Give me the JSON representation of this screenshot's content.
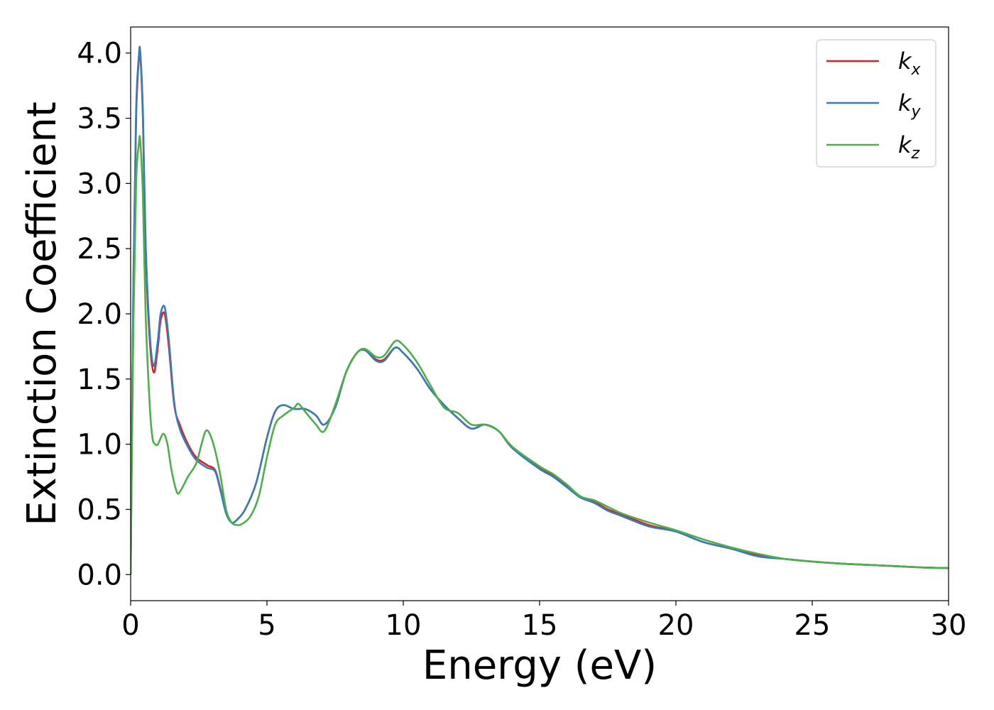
{
  "chart_data": {
    "type": "line",
    "xlabel": "Energy (eV)",
    "ylabel": "Extinction Coefficient",
    "xlim": [
      0,
      30
    ],
    "ylim": [
      -0.2,
      4.2
    ],
    "xticks": [
      0,
      5,
      10,
      15,
      20,
      25,
      30
    ],
    "xtick_labels": [
      "0",
      "5",
      "10",
      "15",
      "20",
      "25",
      "30"
    ],
    "yticks": [
      0.0,
      0.5,
      1.0,
      1.5,
      2.0,
      2.5,
      3.0,
      3.5,
      4.0
    ],
    "ytick_labels": [
      "0.0",
      "0.5",
      "1.0",
      "1.5",
      "2.0",
      "2.5",
      "3.0",
      "3.5",
      "4.0"
    ],
    "grid": false,
    "legend_position": "top-right",
    "series": [
      {
        "name": "k_x",
        "legend_base": "k",
        "legend_sub": "x",
        "color": "#e41a1c",
        "x": [
          0,
          0.1,
          0.2,
          0.3,
          0.35,
          0.45,
          0.55,
          0.7,
          0.85,
          1.0,
          1.1,
          1.25,
          1.4,
          1.6,
          1.8,
          2.1,
          2.4,
          2.8,
          3.1,
          3.3,
          3.5,
          3.7,
          3.9,
          4.2,
          4.6,
          5.0,
          5.3,
          5.6,
          6.0,
          6.4,
          6.8,
          7.1,
          7.5,
          7.9,
          8.3,
          8.6,
          9.0,
          9.3,
          9.7,
          10.0,
          10.5,
          11.0,
          11.5,
          12.0,
          12.5,
          13.0,
          13.5,
          14.0,
          15.0,
          15.5,
          16.0,
          16.5,
          17.0,
          17.5,
          18.0,
          19.0,
          20.0,
          21.0,
          22.0,
          23.0,
          24.0,
          25.0,
          26.0,
          27.0,
          28.0,
          29.0,
          30.0
        ],
        "y": [
          0.0,
          2.2,
          3.5,
          3.95,
          4.0,
          3.5,
          2.5,
          1.8,
          1.55,
          1.75,
          1.95,
          2.0,
          1.75,
          1.3,
          1.15,
          1.0,
          0.9,
          0.84,
          0.8,
          0.65,
          0.48,
          0.4,
          0.42,
          0.5,
          0.7,
          1.05,
          1.25,
          1.3,
          1.27,
          1.27,
          1.22,
          1.15,
          1.28,
          1.55,
          1.7,
          1.72,
          1.65,
          1.65,
          1.74,
          1.7,
          1.58,
          1.42,
          1.3,
          1.2,
          1.12,
          1.15,
          1.1,
          0.98,
          0.82,
          0.76,
          0.68,
          0.6,
          0.56,
          0.5,
          0.46,
          0.38,
          0.33,
          0.25,
          0.2,
          0.15,
          0.12,
          0.1,
          0.085,
          0.075,
          0.065,
          0.055,
          0.05
        ]
      },
      {
        "name": "k_y",
        "legend_base": "k",
        "legend_sub": "y",
        "color": "#377eb8",
        "x": [
          0,
          0.1,
          0.2,
          0.3,
          0.35,
          0.45,
          0.55,
          0.7,
          0.85,
          1.0,
          1.1,
          1.25,
          1.4,
          1.6,
          1.8,
          2.1,
          2.4,
          2.8,
          3.1,
          3.3,
          3.5,
          3.7,
          3.9,
          4.2,
          4.6,
          5.0,
          5.3,
          5.6,
          6.0,
          6.4,
          6.8,
          7.1,
          7.5,
          7.9,
          8.3,
          8.6,
          9.0,
          9.3,
          9.7,
          10.0,
          10.5,
          11.0,
          11.5,
          12.0,
          12.5,
          13.0,
          13.5,
          14.0,
          15.0,
          15.5,
          16.0,
          16.5,
          17.0,
          17.5,
          18.0,
          19.0,
          20.0,
          21.0,
          22.0,
          23.0,
          24.0,
          25.0,
          26.0,
          27.0,
          28.0,
          29.0,
          30.0
        ],
        "y": [
          0.0,
          2.25,
          3.55,
          3.97,
          4.01,
          3.55,
          2.55,
          1.85,
          1.6,
          1.8,
          2.0,
          2.05,
          1.8,
          1.32,
          1.12,
          0.98,
          0.88,
          0.82,
          0.79,
          0.64,
          0.47,
          0.4,
          0.42,
          0.5,
          0.7,
          1.05,
          1.25,
          1.3,
          1.27,
          1.27,
          1.22,
          1.15,
          1.28,
          1.55,
          1.7,
          1.72,
          1.64,
          1.64,
          1.74,
          1.7,
          1.58,
          1.42,
          1.3,
          1.2,
          1.12,
          1.15,
          1.1,
          0.97,
          0.81,
          0.75,
          0.67,
          0.59,
          0.55,
          0.49,
          0.45,
          0.37,
          0.33,
          0.25,
          0.2,
          0.14,
          0.12,
          0.1,
          0.085,
          0.075,
          0.065,
          0.055,
          0.05
        ]
      },
      {
        "name": "k_z",
        "legend_base": "k",
        "legend_sub": "z",
        "color": "#4daf4a",
        "x": [
          0,
          0.1,
          0.2,
          0.3,
          0.35,
          0.45,
          0.55,
          0.7,
          0.8,
          0.9,
          1.0,
          1.2,
          1.35,
          1.5,
          1.7,
          1.85,
          2.1,
          2.4,
          2.6,
          2.75,
          2.9,
          3.1,
          3.3,
          3.5,
          3.7,
          3.9,
          4.1,
          4.4,
          4.7,
          5.0,
          5.3,
          5.6,
          6.0,
          6.15,
          6.4,
          6.8,
          7.1,
          7.5,
          7.9,
          8.3,
          8.6,
          9.0,
          9.3,
          9.7,
          10.0,
          10.5,
          11.0,
          11.5,
          12.0,
          12.5,
          13.0,
          13.5,
          14.0,
          15.0,
          15.5,
          16.0,
          16.5,
          17.0,
          17.5,
          18.0,
          19.0,
          20.0,
          21.0,
          22.0,
          23.0,
          24.0,
          25.0,
          26.0,
          27.0,
          28.0,
          29.0,
          30.0
        ],
        "y": [
          0.0,
          1.9,
          3.0,
          3.3,
          3.33,
          2.9,
          2.0,
          1.3,
          1.05,
          1.0,
          1.0,
          1.08,
          1.0,
          0.8,
          0.63,
          0.65,
          0.75,
          0.85,
          1.0,
          1.1,
          1.08,
          0.95,
          0.75,
          0.5,
          0.4,
          0.38,
          0.39,
          0.45,
          0.6,
          0.9,
          1.15,
          1.22,
          1.28,
          1.31,
          1.25,
          1.15,
          1.1,
          1.3,
          1.55,
          1.7,
          1.73,
          1.67,
          1.68,
          1.79,
          1.76,
          1.63,
          1.45,
          1.28,
          1.24,
          1.15,
          1.15,
          1.1,
          0.98,
          0.83,
          0.77,
          0.69,
          0.6,
          0.57,
          0.52,
          0.47,
          0.4,
          0.34,
          0.27,
          0.21,
          0.16,
          0.12,
          0.1,
          0.085,
          0.075,
          0.065,
          0.055,
          0.05
        ]
      }
    ]
  }
}
